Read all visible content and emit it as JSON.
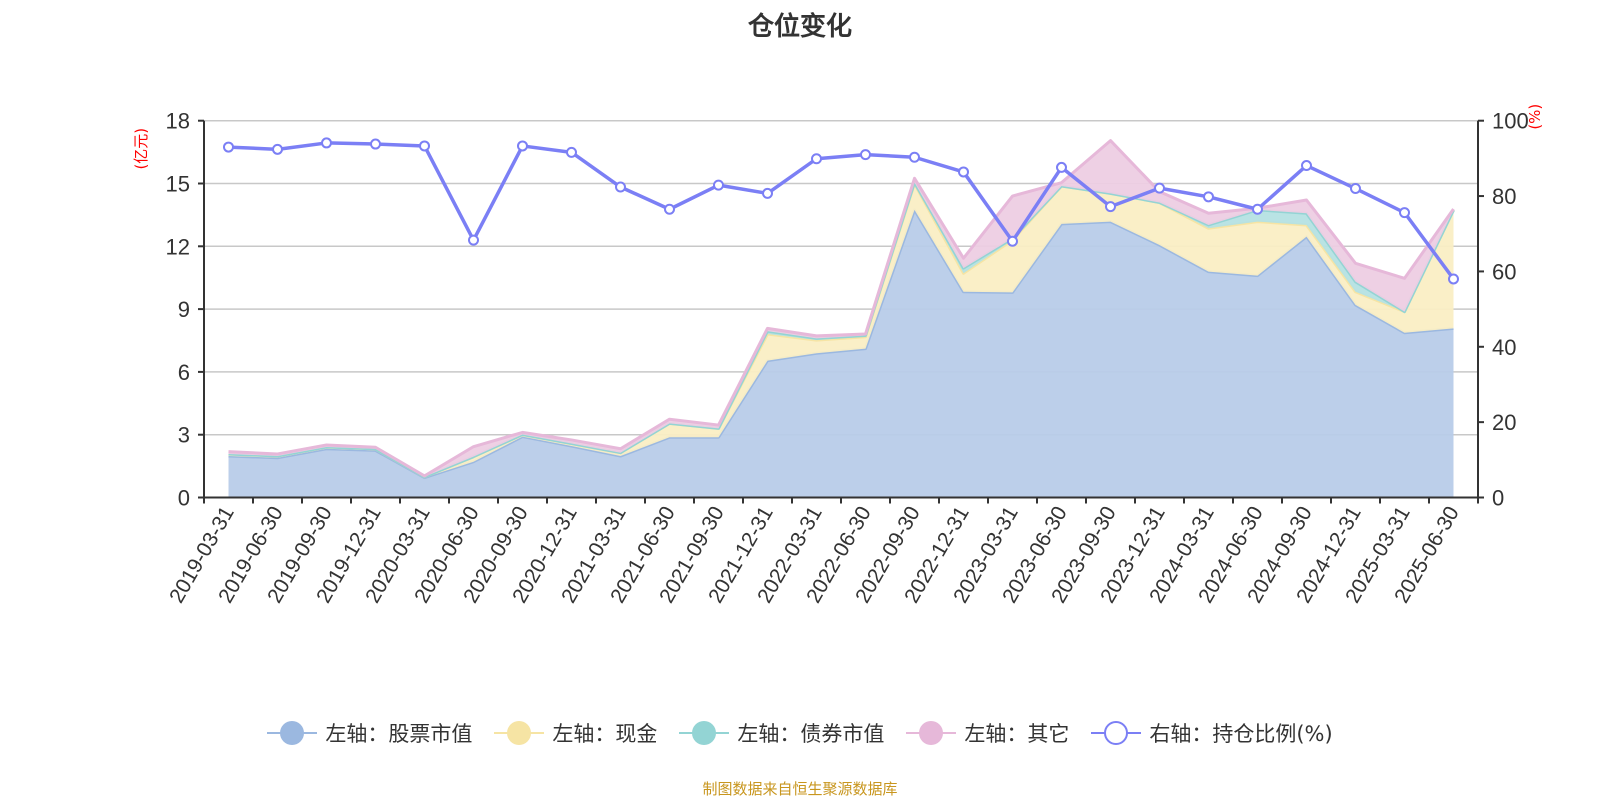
{
  "title": "仓位变化",
  "footer": "制图数据来自恒生聚源数据库",
  "chart_data": {
    "type": "area",
    "stacked": true,
    "title": "仓位变化",
    "ylabel_left": "(亿元)",
    "ylabel_right": "(%)",
    "ylim_left": [
      0,
      18
    ],
    "yticks_left": [
      0,
      3,
      6,
      9,
      12,
      15,
      18
    ],
    "ylim_right": [
      0,
      100
    ],
    "yticks_right": [
      0,
      20,
      40,
      60,
      80,
      100
    ],
    "grid": true,
    "legend_position": "bottom",
    "categories": [
      "2019-03-31",
      "2019-06-30",
      "2019-09-30",
      "2019-12-31",
      "2020-03-31",
      "2020-06-30",
      "2020-09-30",
      "2020-12-31",
      "2021-03-31",
      "2021-06-30",
      "2021-09-30",
      "2021-12-31",
      "2022-03-31",
      "2022-06-30",
      "2022-09-30",
      "2022-12-31",
      "2023-03-31",
      "2023-06-30",
      "2023-09-30",
      "2023-12-31",
      "2024-03-31",
      "2024-06-30",
      "2024-09-30",
      "2024-12-31",
      "2025-03-31",
      "2025-06-30"
    ],
    "series": [
      {
        "name": "左轴：股票市值",
        "axis": "left",
        "kind": "area",
        "color": "#9bb8e0",
        "fill": "#b8cce9",
        "values": [
          1.98,
          1.9,
          2.33,
          2.25,
          0.95,
          1.71,
          2.91,
          2.46,
          1.98,
          2.88,
          2.88,
          6.54,
          6.89,
          7.11,
          13.74,
          9.83,
          9.8,
          13.07,
          13.18,
          12.06,
          10.79,
          10.6,
          12.46,
          9.2,
          7.87,
          8.08
        ]
      },
      {
        "name": "左轴：现金",
        "axis": "left",
        "kind": "area",
        "color": "#f6e4a4",
        "fill": "#faeec4",
        "values": [
          0.1,
          0.08,
          0.08,
          0.07,
          0.04,
          0.24,
          0.1,
          0.12,
          0.16,
          0.66,
          0.42,
          1.27,
          0.63,
          0.57,
          1.26,
          0.88,
          2.5,
          1.81,
          1.35,
          2.03,
          2.07,
          2.58,
          0.56,
          0.63,
          1.01,
          5.65
        ]
      },
      {
        "name": "左轴：债券市值",
        "axis": "left",
        "kind": "area",
        "color": "#93d4d4",
        "fill": "#b5e1e3",
        "values": [
          null,
          null,
          null,
          null,
          null,
          null,
          null,
          null,
          null,
          null,
          null,
          0.14,
          0.08,
          0.06,
          0.05,
          0.25,
          0.08,
          null,
          null,
          null,
          0.16,
          0.56,
          0.56,
          0.48,
          null,
          null
        ]
      },
      {
        "name": "左轴：其它",
        "axis": "left",
        "kind": "area",
        "color": "#e6b8d9",
        "fill": "#edcde3",
        "values": [
          0.11,
          0.1,
          0.1,
          0.08,
          0.04,
          0.48,
          0.1,
          0.17,
          0.19,
          0.2,
          0.16,
          0.13,
          0.12,
          0.07,
          0.2,
          0.47,
          2.02,
          0.16,
          2.52,
          0.52,
          0.56,
          0.08,
          0.63,
          0.88,
          1.59,
          0.05
        ]
      },
      {
        "name": "右轴：持仓比例(%)",
        "axis": "right",
        "kind": "line",
        "color": "#7b7ff5",
        "values": [
          93.0,
          92.4,
          94.1,
          93.8,
          93.3,
          68.3,
          93.3,
          91.6,
          82.4,
          76.5,
          82.9,
          80.7,
          89.9,
          91.0,
          90.3,
          86.4,
          68.0,
          87.6,
          77.2,
          82.1,
          79.8,
          76.5,
          88.1,
          82.0,
          75.6,
          58.0
        ]
      }
    ]
  }
}
